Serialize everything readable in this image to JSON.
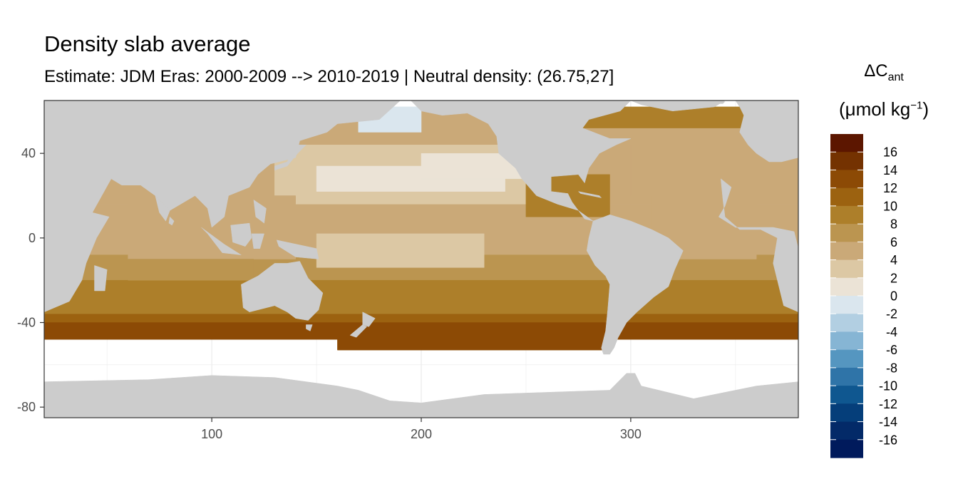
{
  "chart_data": {
    "type": "heatmap",
    "title": "Density slab average",
    "subtitle": "Estimate: JDM Eras: 2000-2009 --> 2010-2019 | Neutral density: (26.75,27]",
    "legend_title_symbol": "ΔC",
    "legend_title_subscript": "ant",
    "legend_unit_text": "(μmol kg",
    "legend_unit_exponent": "−1",
    "legend_unit_close": ")",
    "x_ticks": [
      100,
      200,
      300
    ],
    "y_ticks": [
      40,
      0,
      -40,
      -80
    ],
    "y_tick_labels": [
      "40",
      "0",
      "-40",
      "-80"
    ],
    "xlim": [
      20,
      380
    ],
    "ylim": [
      -85,
      65
    ],
    "grid": true,
    "legend_position": "right",
    "colorbar_labels": [
      "16",
      "14",
      "12",
      "10",
      "8",
      "6",
      "4",
      "2",
      "0",
      "-2",
      "-4",
      "-6",
      "-8",
      "-10",
      "-12",
      "-14",
      "-16"
    ],
    "colorbar_colors": [
      "#5c1600",
      "#743201",
      "#8c4a05",
      "#9c6210",
      "#ad7f2a",
      "#bb9550",
      "#caa978",
      "#dcc8a4",
      "#ebe3d6",
      "#dae6ee",
      "#b2cfe2",
      "#86b5d4",
      "#5596c0",
      "#2f74a8",
      "#0f5790",
      "#053e7a",
      "#032a68",
      "#001a5c"
    ],
    "land_color": "#cccccc",
    "no_data_color": "#ffffff"
  }
}
